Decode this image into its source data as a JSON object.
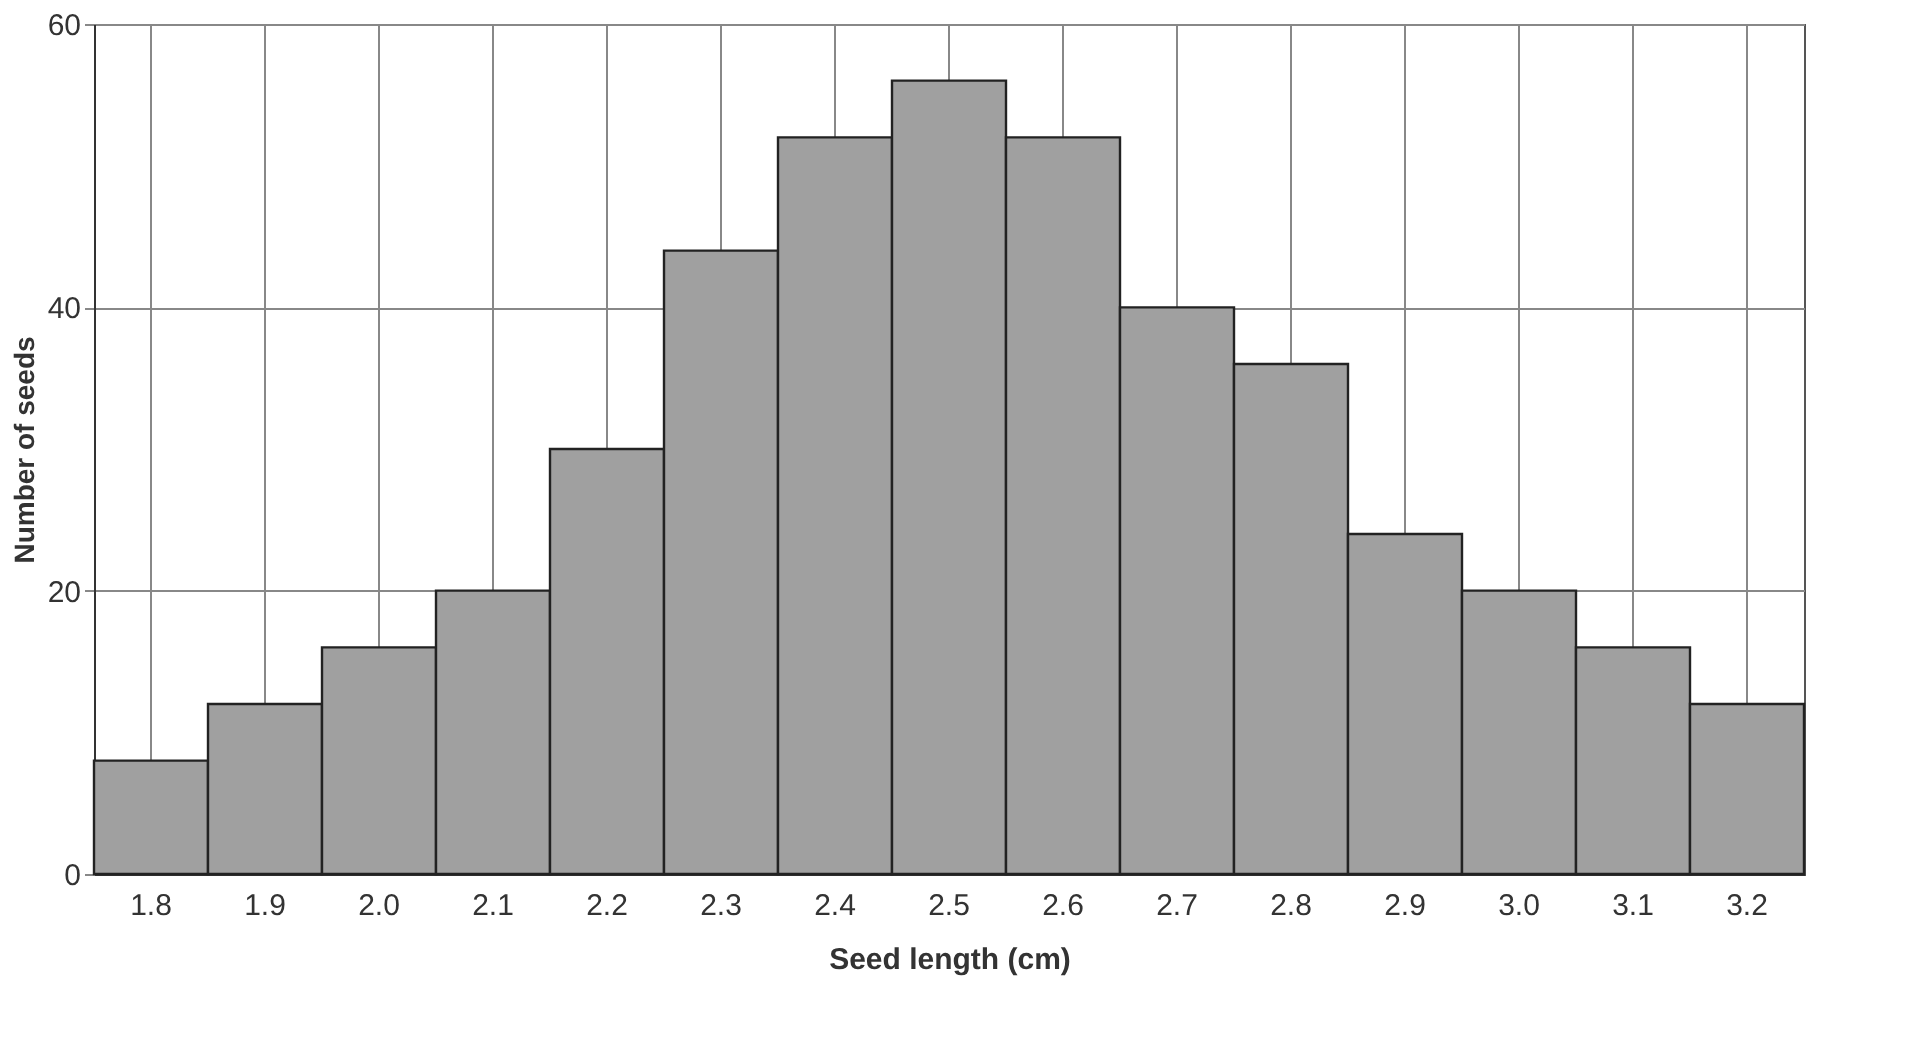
{
  "chart_data": {
    "type": "bar",
    "xlabel": "Seed length (cm)",
    "ylabel": "Number of seeds",
    "categories": [
      "1.8",
      "1.9",
      "2.0",
      "2.1",
      "2.2",
      "2.3",
      "2.4",
      "2.5",
      "2.6",
      "2.7",
      "2.8",
      "2.9",
      "3.0",
      "3.1",
      "3.2"
    ],
    "values": [
      8,
      12,
      16,
      20,
      30,
      44,
      52,
      56,
      52,
      40,
      36,
      24,
      20,
      16,
      12
    ],
    "color": "#a0a0a0",
    "ylim": [
      0,
      60
    ],
    "yticks": [
      0,
      20,
      40,
      60
    ],
    "grid": true
  }
}
